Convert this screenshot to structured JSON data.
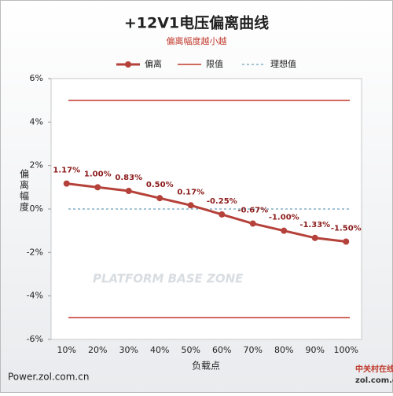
{
  "chart_data": {
    "type": "line",
    "title": "+12V1电压偏离曲线",
    "subtitle": "偏离幅度越小越",
    "x_label": "负载点",
    "y_label": "偏离幅度",
    "categories": [
      "10%",
      "20%",
      "30%",
      "40%",
      "50%",
      "60%",
      "70%",
      "80%",
      "90%",
      "100%"
    ],
    "series": [
      {
        "name": "偏离",
        "color": "#b5423a",
        "values": [
          1.17,
          1.0,
          0.83,
          0.5,
          0.17,
          -0.25,
          -0.67,
          -1.0,
          -1.33,
          -1.5
        ],
        "value_labels": [
          "1.17%",
          "1.00%",
          "0.83%",
          "0.50%",
          "0.17%",
          "-0.25%",
          "-0.67%",
          "-1.00%",
          "-1.33%",
          "-1.50%"
        ]
      }
    ],
    "reference_lines": [
      {
        "name": "限值",
        "color": "#c0392b",
        "values": [
          5,
          -5
        ],
        "dashed": false
      },
      {
        "name": "理想值",
        "color": "#4a8aa8",
        "values": [
          0
        ],
        "dashed": true
      }
    ],
    "ylim": [
      -6,
      6
    ],
    "yticks": [
      {
        "value": -6,
        "label": "-6%"
      },
      {
        "value": -4,
        "label": "-4%"
      },
      {
        "value": -2,
        "label": "-2%"
      },
      {
        "value": 0,
        "label": "0%"
      },
      {
        "value": 2,
        "label": "2%"
      },
      {
        "value": 4,
        "label": "4%"
      },
      {
        "value": 6,
        "label": "6%"
      }
    ],
    "watermark": "PLATFORM BASE ZONE",
    "footer": "Power.zol.com.cn",
    "logo": "中关村在线",
    "logo_sub": "zol.com.cn"
  }
}
